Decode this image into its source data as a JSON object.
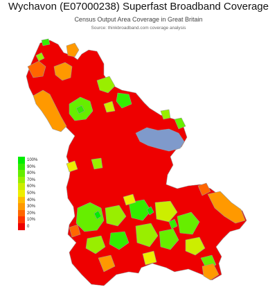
{
  "header": {
    "title": "Wychavon (E07000238) Superfast Broadband Coverage",
    "subtitle": "Census Output Area Coverage in Great Britain",
    "source": "Source: thinkbroadband.com coverage analysis"
  },
  "legend": {
    "items": [
      {
        "label": "100%",
        "color": "#00ee00"
      },
      {
        "label": "90%",
        "color": "#33ee00"
      },
      {
        "label": "80%",
        "color": "#66ee00"
      },
      {
        "label": "70%",
        "color": "#99ee00"
      },
      {
        "label": "60%",
        "color": "#ccee00"
      },
      {
        "label": "50%",
        "color": "#eeee00"
      },
      {
        "label": "40%",
        "color": "#ffbb00"
      },
      {
        "label": "30%",
        "color": "#ff9900"
      },
      {
        "label": "20%",
        "color": "#ff6600"
      },
      {
        "label": "10%",
        "color": "#ff3300"
      },
      {
        "label": "0",
        "color": "#ee0000"
      }
    ]
  },
  "colors": {
    "border": "#9a9a9a",
    "no_data": "#7f9acb"
  }
}
